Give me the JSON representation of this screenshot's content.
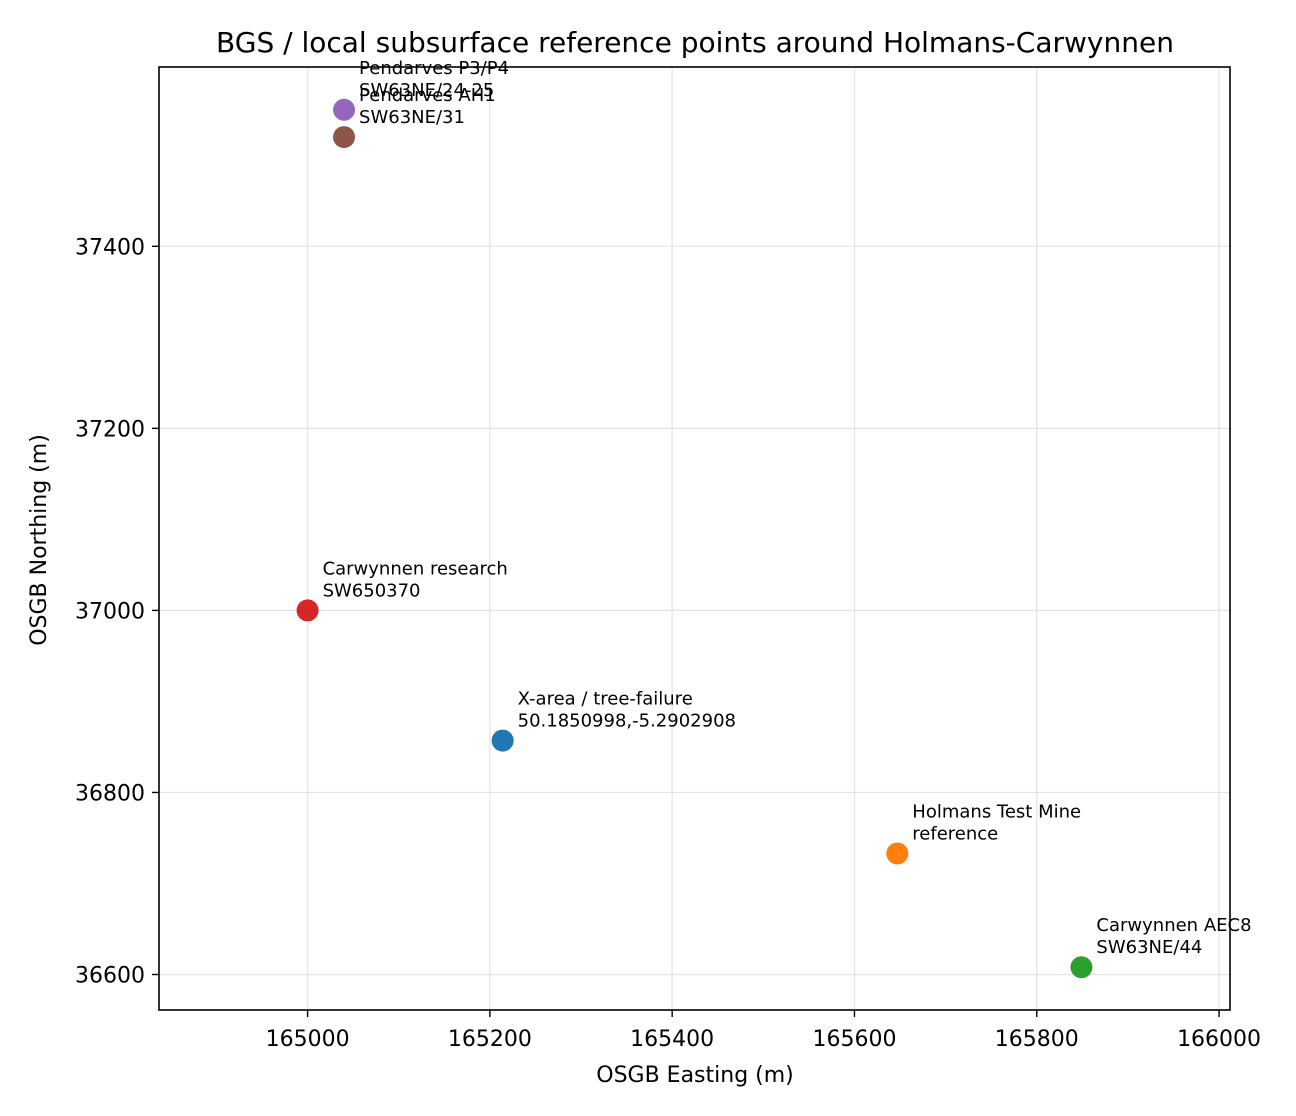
{
  "chart_data": {
    "type": "scatter",
    "title": "BGS / local subsurface reference points around Holmans-Carwynnen",
    "xlabel": "OSGB Easting (m)",
    "ylabel": "OSGB Northing (m)",
    "xlim": [
      164837,
      166012
    ],
    "ylim": [
      36561,
      37597
    ],
    "xticks": [
      165000,
      165200,
      165400,
      165600,
      165800,
      166000
    ],
    "yticks": [
      36600,
      36800,
      37000,
      37200,
      37400
    ],
    "grid": true,
    "points": [
      {
        "x": 165214,
        "y": 36857,
        "color": "#1f77b4",
        "label_lines": [
          "X-area / tree-failure",
          "50.1850998,-5.2902908"
        ]
      },
      {
        "x": 165647,
        "y": 36733,
        "color": "#ff7f0e",
        "label_lines": [
          "Holmans Test Mine",
          "reference"
        ]
      },
      {
        "x": 165849,
        "y": 36608,
        "color": "#2ca02c",
        "label_lines": [
          "Carwynnen AEC8",
          "SW63NE/44"
        ]
      },
      {
        "x": 165000,
        "y": 37000,
        "color": "#d62728",
        "label_lines": [
          "Carwynnen research",
          "SW650370"
        ]
      },
      {
        "x": 165040,
        "y": 37550,
        "color": "#9467bd",
        "label_lines": [
          "Pendarves P3/P4",
          "SW63NE/24-25"
        ]
      },
      {
        "x": 165040,
        "y": 37520,
        "color": "#8c564b",
        "label_lines": [
          "Pendarves AH1",
          "SW63NE/31"
        ]
      }
    ]
  }
}
